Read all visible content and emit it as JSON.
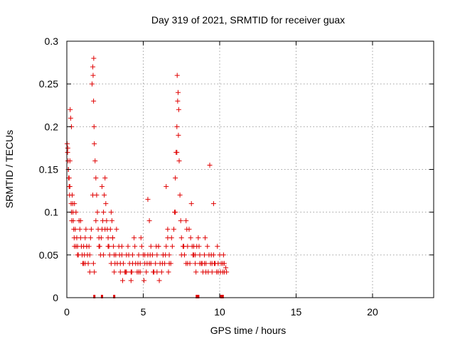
{
  "chart_data": {
    "type": "scatter",
    "title": "Day 319 of 2021, SRMTID for receiver guax",
    "xlabel": "GPS time / hours",
    "ylabel": "SRMTID / TECUs",
    "xlim": [
      0,
      24
    ],
    "ylim": [
      0,
      0.3
    ],
    "xticks": [
      0,
      5,
      10,
      15,
      20
    ],
    "xtick_labels": [
      "0",
      "5",
      "10",
      "15",
      "20"
    ],
    "yticks": [
      0,
      0.05,
      0.1,
      0.15,
      0.2,
      0.25,
      0.3
    ],
    "ytick_labels": [
      "0",
      "0.05",
      "0.1",
      "0.15",
      "0.2",
      "0.25",
      "0.3"
    ],
    "grid": true,
    "marker": "+",
    "color": "#e00000",
    "zero_flags_x": [
      1.8,
      2.3,
      3.1,
      8.5,
      8.6,
      10.1,
      10.2
    ],
    "series": [
      {
        "name": "SRMTID",
        "x": [
          0.05,
          0.08,
          0.1,
          0.12,
          0.15,
          0.18,
          0.2,
          0.22,
          0.25,
          0.28,
          0.3,
          0.32,
          0.35,
          0.38,
          0.4,
          0.42,
          0.45,
          0.48,
          0.5,
          0.55,
          0.6,
          0.65,
          0.7,
          0.75,
          0.8,
          0.85,
          0.9,
          0.95,
          1.0,
          1.05,
          1.1,
          1.15,
          1.2,
          1.25,
          1.3,
          1.35,
          1.4,
          1.45,
          1.5,
          1.55,
          1.6,
          1.65,
          1.7,
          1.72,
          1.75,
          1.78,
          1.8,
          1.85,
          1.9,
          1.95,
          2.0,
          2.05,
          2.1,
          2.15,
          2.2,
          2.25,
          2.3,
          2.35,
          2.4,
          2.45,
          2.5,
          2.55,
          2.6,
          2.65,
          2.7,
          2.75,
          2.8,
          2.85,
          2.9,
          2.95,
          3.0,
          3.05,
          3.1,
          3.15,
          3.2,
          3.3,
          3.4,
          3.5,
          3.6,
          3.7,
          3.8,
          3.9,
          4.0,
          4.1,
          4.2,
          4.3,
          4.4,
          4.5,
          4.6,
          4.7,
          4.8,
          4.9,
          5.0,
          5.1,
          5.2,
          5.3,
          5.4,
          5.5,
          5.6,
          5.7,
          5.8,
          5.9,
          6.0,
          6.1,
          6.2,
          6.3,
          6.4,
          6.5,
          6.6,
          6.7,
          6.8,
          6.9,
          7.0,
          7.05,
          7.1,
          7.15,
          7.2,
          7.25,
          7.3,
          7.35,
          7.4,
          7.45,
          7.5,
          7.6,
          7.7,
          7.8,
          7.9,
          8.0,
          8.1,
          8.2,
          8.3,
          8.4,
          8.5,
          8.6,
          8.7,
          8.8,
          8.9,
          9.0,
          9.1,
          9.2,
          9.3,
          9.4,
          9.5,
          9.6,
          9.7,
          9.8,
          9.9,
          10.0,
          10.1,
          10.2,
          10.3,
          10.4,
          10.45,
          0.1,
          0.2,
          0.3,
          0.5,
          0.7,
          0.9,
          1.1,
          1.3,
          1.5,
          1.7,
          1.9,
          2.1,
          2.3,
          2.5,
          2.7,
          2.9,
          3.1,
          3.5,
          3.9,
          4.3,
          4.7,
          5.1,
          5.5,
          5.9,
          6.3,
          6.7,
          7.1,
          7.5,
          7.9,
          8.3,
          8.7,
          9.1,
          9.5,
          9.9,
          10.3,
          0.15,
          0.6,
          1.2,
          1.8,
          2.4,
          3.0,
          3.6,
          4.2,
          4.8,
          5.4,
          6.0,
          6.6,
          7.2,
          7.8,
          8.4,
          9.0,
          9.6,
          10.2,
          3.25,
          3.45,
          3.65,
          3.85,
          4.05,
          4.25,
          4.45,
          4.65,
          4.85,
          5.05,
          5.25,
          5.45,
          5.65,
          5.85,
          6.05,
          6.25,
          6.45,
          6.65,
          6.85,
          7.65,
          7.85,
          8.05,
          8.25,
          8.45,
          8.65,
          8.85,
          9.05,
          9.25,
          9.45,
          9.65,
          9.85,
          10.05,
          10.25,
          1.74,
          1.76,
          7.22,
          7.28,
          7.32,
          0.02,
          0.06,
          9.35,
          8.15,
          6.5,
          5.3
        ],
        "y": [
          0.17,
          0.16,
          0.15,
          0.14,
          0.13,
          0.12,
          0.16,
          0.22,
          0.21,
          0.11,
          0.1,
          0.09,
          0.12,
          0.11,
          0.1,
          0.09,
          0.08,
          0.07,
          0.06,
          0.08,
          0.1,
          0.07,
          0.06,
          0.05,
          0.09,
          0.08,
          0.07,
          0.06,
          0.05,
          0.04,
          0.06,
          0.05,
          0.07,
          0.08,
          0.06,
          0.05,
          0.04,
          0.06,
          0.05,
          0.07,
          0.08,
          0.25,
          0.27,
          0.26,
          0.23,
          0.2,
          0.18,
          0.16,
          0.14,
          0.12,
          0.1,
          0.08,
          0.07,
          0.06,
          0.05,
          0.07,
          0.08,
          0.09,
          0.1,
          0.12,
          0.14,
          0.11,
          0.09,
          0.08,
          0.07,
          0.06,
          0.05,
          0.08,
          0.1,
          0.09,
          0.07,
          0.06,
          0.05,
          0.04,
          0.05,
          0.04,
          0.06,
          0.03,
          0.05,
          0.04,
          0.03,
          0.05,
          0.06,
          0.04,
          0.03,
          0.05,
          0.07,
          0.04,
          0.03,
          0.05,
          0.04,
          0.06,
          0.05,
          0.04,
          0.03,
          0.05,
          0.04,
          0.06,
          0.05,
          0.03,
          0.04,
          0.05,
          0.06,
          0.04,
          0.03,
          0.05,
          0.04,
          0.06,
          0.07,
          0.05,
          0.04,
          0.06,
          0.08,
          0.1,
          0.14,
          0.17,
          0.2,
          0.23,
          0.19,
          0.16,
          0.12,
          0.09,
          0.07,
          0.06,
          0.05,
          0.04,
          0.06,
          0.08,
          0.07,
          0.06,
          0.05,
          0.04,
          0.06,
          0.07,
          0.05,
          0.04,
          0.03,
          0.05,
          0.04,
          0.06,
          0.05,
          0.04,
          0.03,
          0.05,
          0.04,
          0.03,
          0.04,
          0.05,
          0.04,
          0.03,
          0.04,
          0.035,
          0.03,
          0.15,
          0.13,
          0.2,
          0.11,
          0.05,
          0.09,
          0.04,
          0.06,
          0.03,
          0.12,
          0.09,
          0.06,
          0.13,
          0.08,
          0.06,
          0.04,
          0.03,
          0.04,
          0.03,
          0.04,
          0.03,
          0.05,
          0.04,
          0.03,
          0.05,
          0.04,
          0.1,
          0.05,
          0.04,
          0.06,
          0.04,
          0.03,
          0.04,
          0.03,
          0.03,
          0.14,
          0.06,
          0.04,
          0.03,
          0.05,
          0.07,
          0.06,
          0.02,
          0.03,
          0.09,
          0.06,
          0.08,
          0.17,
          0.09,
          0.05,
          0.04,
          0.11,
          0.04,
          0.08,
          0.05,
          0.02,
          0.03,
          0.05,
          0.03,
          0.06,
          0.04,
          0.07,
          0.02,
          0.04,
          0.05,
          0.03,
          0.06,
          0.02,
          0.04,
          0.05,
          0.03,
          0.07,
          0.06,
          0.08,
          0.04,
          0.05,
          0.03,
          0.06,
          0.04,
          0.07,
          0.03,
          0.05,
          0.04,
          0.06,
          0.03,
          0.05,
          0.04,
          0.28,
          0.26,
          0.24,
          0.22,
          0.18,
          0.175,
          0.155,
          0.11,
          0.13,
          0.115
        ],
        "flagged": true
      }
    ]
  }
}
